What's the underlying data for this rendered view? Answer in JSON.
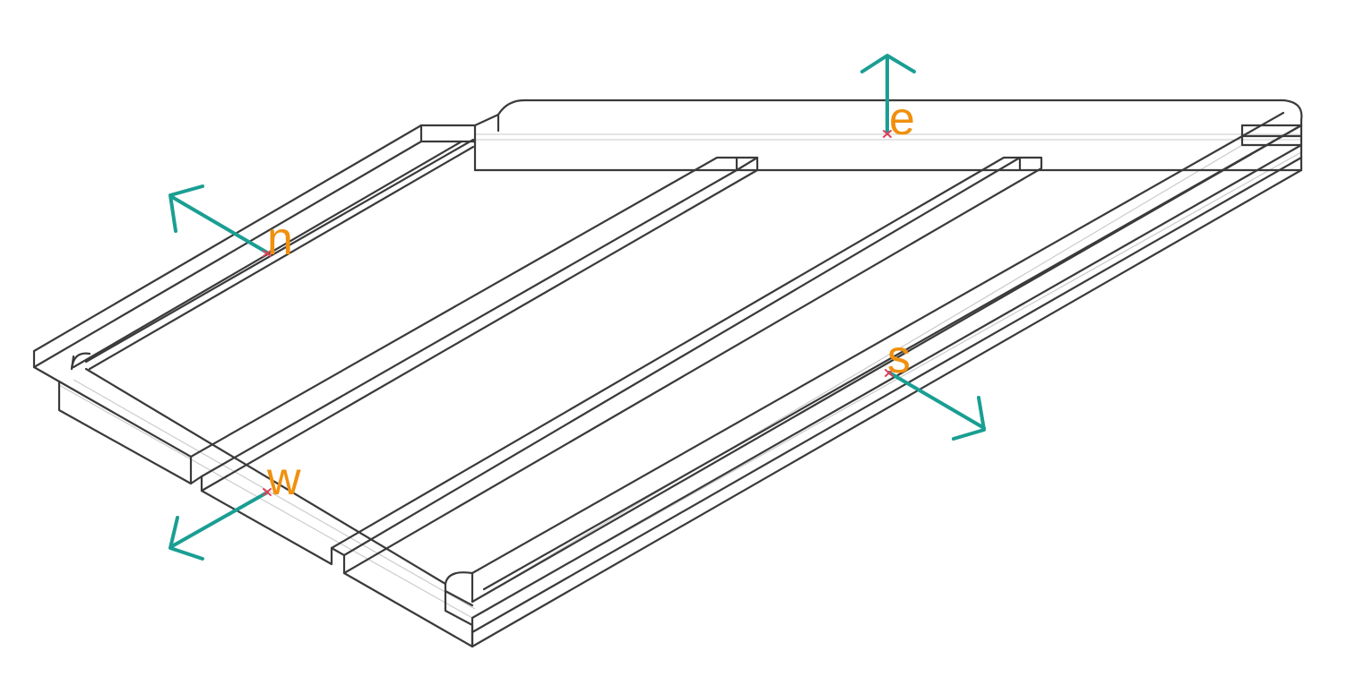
{
  "colors": {
    "outline": "#3a3a3a",
    "hidden_line": "#c8c8c8",
    "arrow": "#1a9e93",
    "marker": "#e0405a",
    "label": "#f0900e",
    "background": "#ffffff"
  },
  "markers": [
    {
      "id": "n",
      "label": "n"
    },
    {
      "id": "e",
      "label": "e"
    },
    {
      "id": "s",
      "label": "s"
    },
    {
      "id": "w",
      "label": "w"
    }
  ]
}
